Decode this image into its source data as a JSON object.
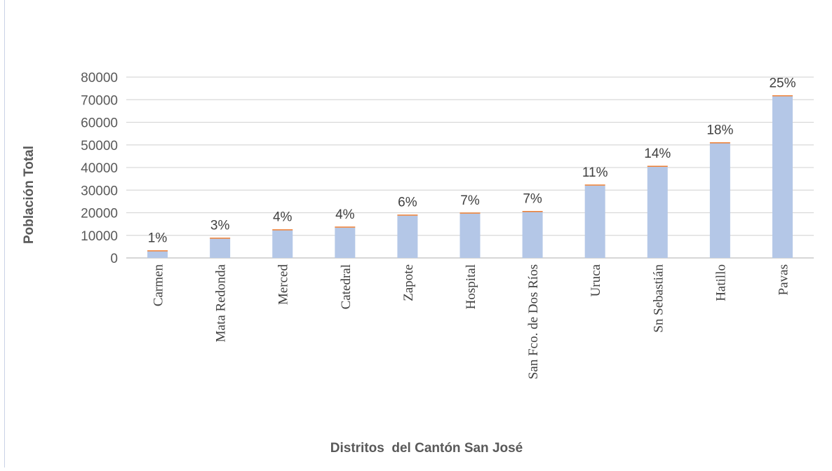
{
  "chart_data": {
    "type": "bar",
    "title": "",
    "xlabel": "Distritos  del Cantón San José",
    "ylabel": "Población Total",
    "ylim": [
      0,
      80000
    ],
    "yticks": [
      0,
      10000,
      20000,
      30000,
      40000,
      50000,
      60000,
      70000,
      80000
    ],
    "grid": true,
    "legend": "none",
    "categories": [
      "Carmen",
      "Mata Redonda",
      "Merced",
      "Catedral",
      "Zapote",
      "Hospital",
      "San Fco. de Dos Ríos",
      "Uruca",
      "Sn Sebastián",
      "Hatillo",
      "Pavas"
    ],
    "values": [
      2900,
      8500,
      12200,
      13400,
      18700,
      19600,
      20300,
      32000,
      40300,
      50700,
      71500
    ],
    "percent_labels": [
      "1%",
      "3%",
      "4%",
      "4%",
      "6%",
      "7%",
      "7%",
      "11%",
      "14%",
      "18%",
      "25%"
    ],
    "colors": {
      "bar": "#b4c7e7",
      "bar_cap": "#ed7d31",
      "grid": "#d9d9d9"
    }
  }
}
